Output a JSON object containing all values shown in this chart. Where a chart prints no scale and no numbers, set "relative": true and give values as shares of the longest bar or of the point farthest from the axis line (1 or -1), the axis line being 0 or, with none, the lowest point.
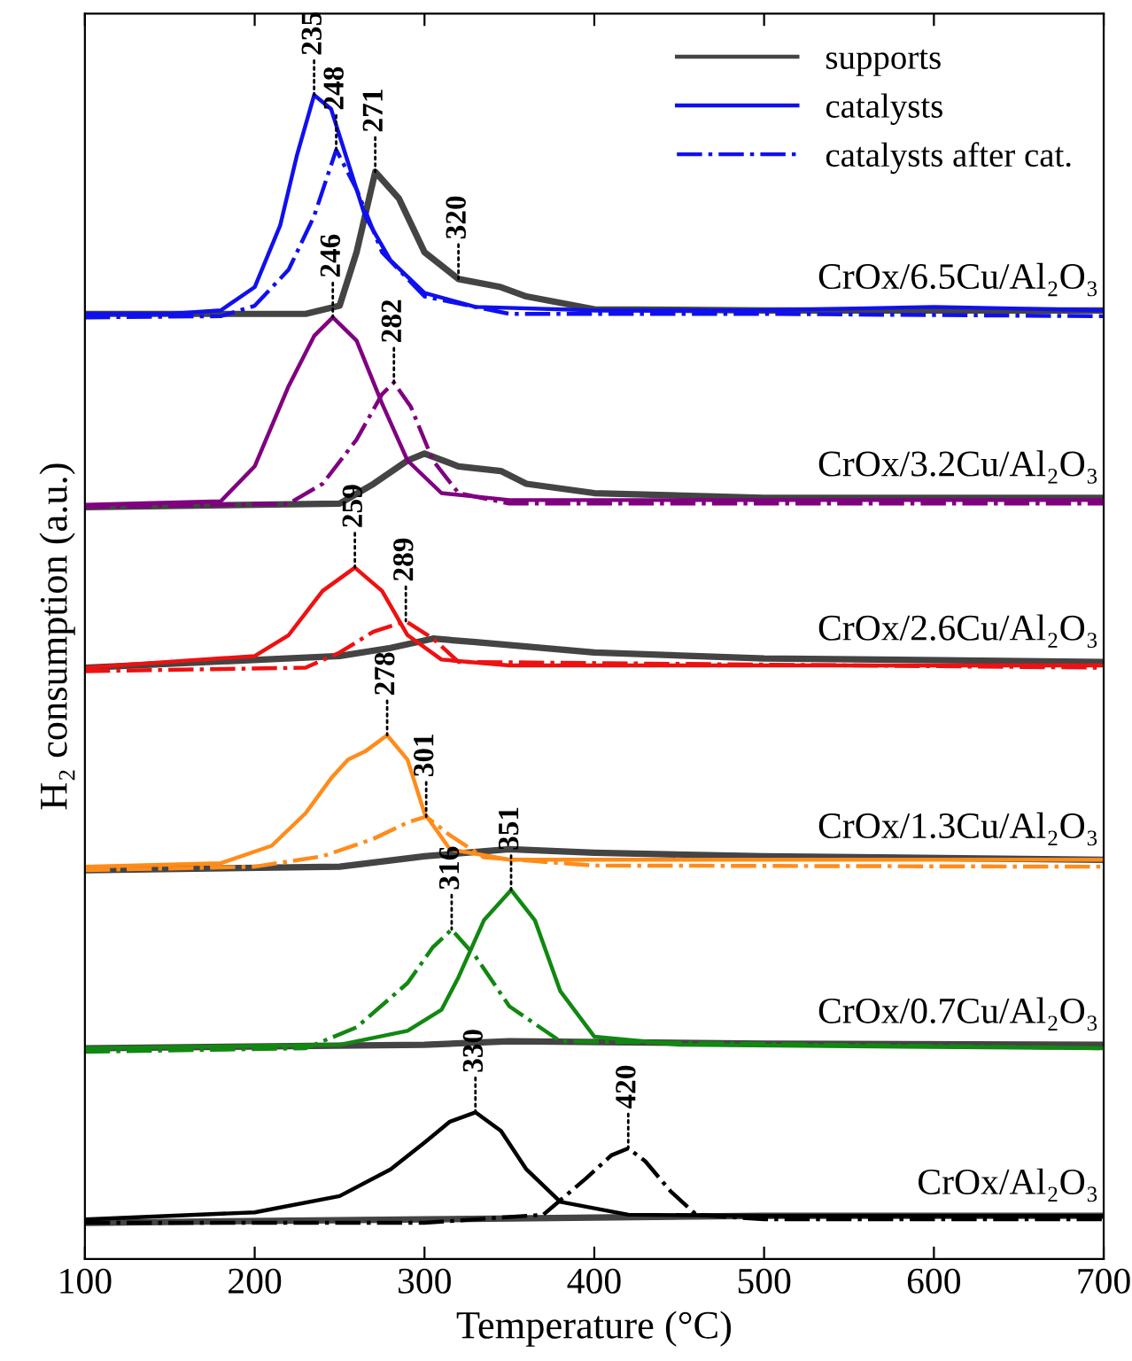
{
  "chart_data": {
    "type": "line",
    "relative": true,
    "xlabel": "Temperature (°C)",
    "ylabel": "H₂ consumption (a.u.)",
    "xlim": [
      100,
      700
    ],
    "xticks": [
      100,
      200,
      300,
      400,
      500,
      600,
      700
    ],
    "legend": "top right",
    "marker": "none",
    "grid": false,
    "tick_labels": "x",
    "series": [
      {
        "name": "supports",
        "color": "#444444",
        "line_style": "solid",
        "x": [
          100,
          230,
          250,
          260,
          271,
          285,
          300,
          320,
          345,
          360,
          400,
          500,
          700
        ],
        "values": [
          0.812,
          0.812,
          0.819,
          0.865,
          0.934,
          0.911,
          0.865,
          0.842,
          0.835,
          0.827,
          0.816,
          0.815,
          0.815
        ]
      },
      {
        "name": "catalysts",
        "color": "#1010ee",
        "line_style": "solid",
        "x": [
          100,
          150,
          180,
          200,
          215,
          225,
          235,
          245,
          255,
          265,
          280,
          300,
          330,
          400,
          500,
          600,
          700
        ],
        "values": [
          0.812,
          0.812,
          0.815,
          0.835,
          0.888,
          0.949,
          1.0,
          0.988,
          0.942,
          0.896,
          0.858,
          0.83,
          0.818,
          0.815,
          0.815,
          0.818,
          0.815
        ]
      },
      {
        "name": "catalysts after cat.",
        "color": "#1010ee",
        "line_style": "dashdot",
        "x": [
          100,
          180,
          200,
          220,
          235,
          248,
          260,
          275,
          300,
          350,
          500,
          700
        ],
        "values": [
          0.809,
          0.81,
          0.819,
          0.85,
          0.896,
          0.953,
          0.919,
          0.865,
          0.827,
          0.812,
          0.812,
          0.81
        ]
      },
      {
        "color": "#444444",
        "line_style": "solid",
        "x": [
          100,
          250,
          270,
          290,
          300,
          320,
          345,
          360,
          400,
          500,
          700
        ],
        "values": [
          0.646,
          0.649,
          0.666,
          0.686,
          0.692,
          0.681,
          0.677,
          0.666,
          0.658,
          0.654,
          0.654
        ]
      },
      {
        "color": "#800080",
        "line_style": "solid",
        "x": [
          100,
          180,
          200,
          220,
          235,
          246,
          260,
          275,
          290,
          310,
          350,
          700
        ],
        "values": [
          0.648,
          0.651,
          0.681,
          0.75,
          0.793,
          0.809,
          0.789,
          0.735,
          0.686,
          0.658,
          0.652,
          0.652
        ]
      },
      {
        "color": "#800080",
        "line_style": "dashdot",
        "x": [
          100,
          220,
          240,
          260,
          275,
          282,
          292,
          305,
          320,
          350,
          700
        ],
        "values": [
          0.646,
          0.649,
          0.666,
          0.704,
          0.743,
          0.753,
          0.732,
          0.686,
          0.658,
          0.649,
          0.649
        ]
      },
      {
        "color": "#444444",
        "line_style": "solid",
        "x": [
          100,
          250,
          280,
          305,
          330,
          400,
          500,
          700
        ],
        "values": [
          0.508,
          0.518,
          0.525,
          0.533,
          0.53,
          0.521,
          0.516,
          0.513
        ]
      },
      {
        "color": "#ee1111",
        "line_style": "solid",
        "x": [
          100,
          200,
          220,
          240,
          259,
          275,
          290,
          310,
          350,
          700
        ],
        "values": [
          0.508,
          0.518,
          0.536,
          0.574,
          0.594,
          0.574,
          0.536,
          0.515,
          0.51,
          0.51
        ]
      },
      {
        "color": "#ee1111",
        "line_style": "dashdot",
        "x": [
          100,
          230,
          250,
          270,
          289,
          305,
          320,
          700
        ],
        "values": [
          0.505,
          0.508,
          0.521,
          0.539,
          0.548,
          0.533,
          0.513,
          0.508
        ]
      },
      {
        "color": "#444444",
        "line_style": "solid",
        "x": [
          100,
          250,
          300,
          350,
          400,
          500,
          700
        ],
        "values": [
          0.334,
          0.337,
          0.346,
          0.352,
          0.349,
          0.346,
          0.343
        ]
      },
      {
        "color": "#ff8c1a",
        "line_style": "solid",
        "x": [
          100,
          180,
          210,
          230,
          245,
          255,
          265,
          278,
          290,
          300,
          315,
          350,
          700
        ],
        "values": [
          0.337,
          0.34,
          0.355,
          0.383,
          0.413,
          0.429,
          0.436,
          0.45,
          0.429,
          0.383,
          0.352,
          0.343,
          0.343
        ]
      },
      {
        "color": "#ff8c1a",
        "line_style": "dashdot",
        "x": [
          100,
          200,
          240,
          270,
          290,
          301,
          315,
          335,
          400,
          700
        ],
        "values": [
          0.334,
          0.337,
          0.346,
          0.361,
          0.375,
          0.38,
          0.364,
          0.345,
          0.338,
          0.337
        ]
      },
      {
        "color": "#444444",
        "line_style": "solid",
        "x": [
          100,
          300,
          350,
          500,
          700
        ],
        "values": [
          0.181,
          0.184,
          0.187,
          0.185,
          0.184
        ]
      },
      {
        "color": "#118811",
        "line_style": "solid",
        "x": [
          100,
          250,
          290,
          310,
          320,
          335,
          351,
          365,
          380,
          400,
          450,
          700
        ],
        "values": [
          0.181,
          0.184,
          0.196,
          0.214,
          0.242,
          0.291,
          0.317,
          0.291,
          0.23,
          0.191,
          0.184,
          0.181
        ]
      },
      {
        "color": "#118811",
        "line_style": "dashdot",
        "x": [
          100,
          230,
          260,
          290,
          305,
          316,
          330,
          350,
          380,
          700
        ],
        "values": [
          0.178,
          0.181,
          0.199,
          0.237,
          0.268,
          0.283,
          0.26,
          0.217,
          0.187,
          0.181
        ]
      },
      {
        "color": "#444444",
        "line_style": "solid",
        "x": [
          100,
          300,
          500,
          700
        ],
        "values": [
          0.031,
          0.034,
          0.037,
          0.037
        ]
      },
      {
        "color": "#000000",
        "line_style": "solid",
        "x": [
          100,
          200,
          250,
          280,
          300,
          315,
          330,
          345,
          360,
          380,
          420,
          500,
          700
        ],
        "values": [
          0.034,
          0.04,
          0.054,
          0.077,
          0.1,
          0.118,
          0.126,
          0.11,
          0.077,
          0.049,
          0.038,
          0.037,
          0.037
        ]
      },
      {
        "color": "#000000",
        "line_style": "dashdot",
        "x": [
          100,
          300,
          370,
          395,
          410,
          420,
          430,
          445,
          460,
          500,
          700
        ],
        "values": [
          0.031,
          0.031,
          0.038,
          0.069,
          0.089,
          0.095,
          0.084,
          0.058,
          0.038,
          0.034,
          0.034
        ]
      }
    ],
    "annotations": [
      {
        "text": "235",
        "x": 235,
        "y": 1.0
      },
      {
        "text": "248",
        "x": 248,
        "y": 0.953
      },
      {
        "text": "271",
        "x": 271,
        "y": 0.934
      },
      {
        "text": "320",
        "x": 320,
        "y": 0.842
      },
      {
        "text": "246",
        "x": 246,
        "y": 0.809
      },
      {
        "text": "282",
        "x": 282,
        "y": 0.753
      },
      {
        "text": "259",
        "x": 259,
        "y": 0.594
      },
      {
        "text": "289",
        "x": 289,
        "y": 0.548
      },
      {
        "text": "278",
        "x": 278,
        "y": 0.45
      },
      {
        "text": "301",
        "x": 301,
        "y": 0.38
      },
      {
        "text": "316",
        "x": 316,
        "y": 0.283
      },
      {
        "text": "351",
        "x": 351,
        "y": 0.317
      },
      {
        "text": "330",
        "x": 330,
        "y": 0.126
      },
      {
        "text": "420",
        "x": 420,
        "y": 0.095
      },
      "CrOx/6.5Cu/Al₂O₃",
      "CrOx/3.2Cu/Al₂O₃",
      "CrOx/2.6Cu/Al₂O₃",
      "CrOx/1.3Cu/Al₂O₃",
      "CrOx/0.7Cu/Al₂O₃",
      "CrOx/Al₂O₃"
    ]
  }
}
